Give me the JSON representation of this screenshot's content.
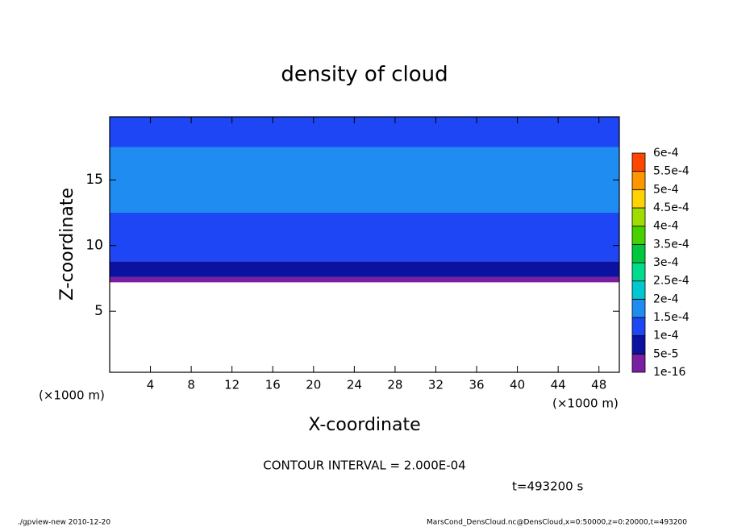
{
  "chart_data": {
    "type": "contour",
    "title": "density of cloud",
    "x_label": "X-coordinate",
    "y_label": "Z-coordinate",
    "x_unit": "(×1000 m)",
    "xlim": [
      0,
      50
    ],
    "xticks": [
      4,
      8,
      12,
      16,
      20,
      24,
      28,
      32,
      36,
      40,
      44,
      48
    ],
    "ylim": [
      0.35,
      19.8
    ],
    "yticks": [
      5,
      10,
      15
    ],
    "field": [
      {
        "z": [
          7.2,
          7.6
        ],
        "value": 3e-05
      },
      {
        "z": [
          7.6,
          8.8
        ],
        "value": 7e-05
      },
      {
        "z": [
          8.8,
          12.5
        ],
        "value": 0.00012
      },
      {
        "z": [
          12.5,
          17.5
        ],
        "value": 0.00017
      },
      {
        "z": [
          17.5,
          19.8
        ],
        "value": 0.00013
      }
    ],
    "levels": [
      {
        "value": 1e-16,
        "label": "1e-16"
      },
      {
        "value": 5e-05,
        "label": "5e-5"
      },
      {
        "value": 0.0001,
        "label": "1e-4"
      },
      {
        "value": 0.00015,
        "label": "1.5e-4"
      },
      {
        "value": 0.0002,
        "label": "2e-4"
      },
      {
        "value": 0.00025,
        "label": "2.5e-4"
      },
      {
        "value": 0.0003,
        "label": "3e-4"
      },
      {
        "value": 0.00035,
        "label": "3.5e-4"
      },
      {
        "value": 0.0004,
        "label": "4e-4"
      },
      {
        "value": 0.00045,
        "label": "4.5e-4"
      },
      {
        "value": 0.0005,
        "label": "5e-4"
      },
      {
        "value": 0.00055,
        "label": "5.5e-4"
      },
      {
        "value": 0.0006,
        "label": "6e-4"
      }
    ],
    "colors": [
      "#7a1fa2",
      "#0c12a0",
      "#1e46f5",
      "#1e8cf0",
      "#00c8d2",
      "#00dc8c",
      "#00c83c",
      "#46d200",
      "#a0dc00",
      "#ffd200",
      "#ff9600",
      "#ff4600"
    ],
    "annotations": {
      "contour_interval": "CONTOUR INTERVAL = 2.000E-04",
      "time": "t=493200 s",
      "program": "./gpview-new   2010-12-20",
      "source": "MarsCond_DensCloud.nc@DensCloud,x=0:50000,z=0:20000,t=493200"
    }
  }
}
